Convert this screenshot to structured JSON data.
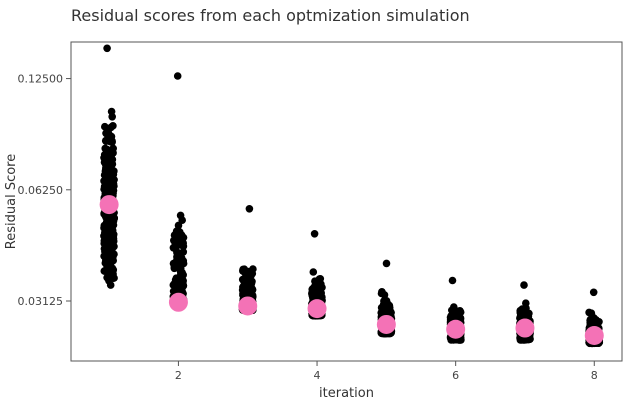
{
  "chart_data": {
    "type": "scatter",
    "title": "Residual scores from each optmization simulation",
    "xlabel": "iteration",
    "ylabel": "Residual Score",
    "y_scale": "log2",
    "xlim": [
      0.45,
      8.4
    ],
    "ylim": [
      0.0215,
      0.157
    ],
    "x_ticks": [
      2,
      4,
      6,
      8
    ],
    "y_ticks": [
      0.03125,
      0.0625,
      0.125
    ],
    "y_tick_labels": [
      "0.03125",
      "0.06250",
      "0.12500"
    ],
    "grid": false,
    "jitter_width": 0.3,
    "point_color": "#000000",
    "summary_color": "#f472b6",
    "series": [
      {
        "name": "simulations",
        "style": "jittered points",
        "groups": [
          {
            "iteration": 1,
            "min": 0.0345,
            "max": 0.151
          },
          {
            "iteration": 2,
            "min": 0.0315,
            "max": 0.127
          },
          {
            "iteration": 3,
            "min": 0.0295,
            "max": 0.0555
          },
          {
            "iteration": 4,
            "min": 0.0285,
            "max": 0.0475
          },
          {
            "iteration": 5,
            "min": 0.0255,
            "max": 0.0395
          },
          {
            "iteration": 6,
            "min": 0.0245,
            "max": 0.0355
          },
          {
            "iteration": 7,
            "min": 0.0245,
            "max": 0.0345
          },
          {
            "iteration": 8,
            "min": 0.024,
            "max": 0.033
          }
        ]
      },
      {
        "name": "summary",
        "style": "large points",
        "x": [
          1,
          2,
          3,
          4,
          5,
          6,
          7,
          8
        ],
        "y": [
          0.057,
          0.031,
          0.0303,
          0.0298,
          0.027,
          0.0262,
          0.0264,
          0.0252
        ]
      }
    ]
  }
}
